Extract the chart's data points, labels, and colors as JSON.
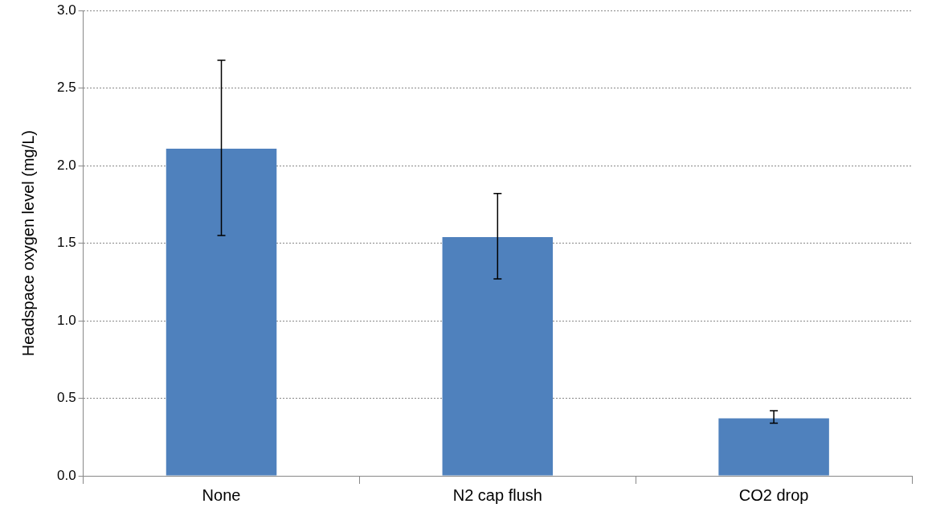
{
  "chart_data": {
    "type": "bar",
    "ylabel": "Headspace oxygen level (mg/L)",
    "categories": [
      "None",
      "N2 cap flush",
      "CO2 drop"
    ],
    "series": [
      {
        "color": "#4f81bd",
        "values": [
          2.11,
          1.54,
          0.37
        ],
        "errors": [
          [
            1.55,
            2.68
          ],
          [
            1.27,
            1.82
          ],
          [
            0.34,
            0.42
          ]
        ]
      }
    ],
    "ylim": [
      0,
      3
    ],
    "yticks": [
      {
        "value": 0,
        "label": "0.0"
      },
      {
        "value": 0.5,
        "label": "0.5"
      },
      {
        "value": 1,
        "label": "1.0"
      },
      {
        "value": 1.5,
        "label": "1.5"
      },
      {
        "value": 2,
        "label": "2.0"
      },
      {
        "value": 2.5,
        "label": "2.5"
      },
      {
        "value": 3,
        "label": "3.0"
      }
    ],
    "grid": "y",
    "legend": false
  }
}
